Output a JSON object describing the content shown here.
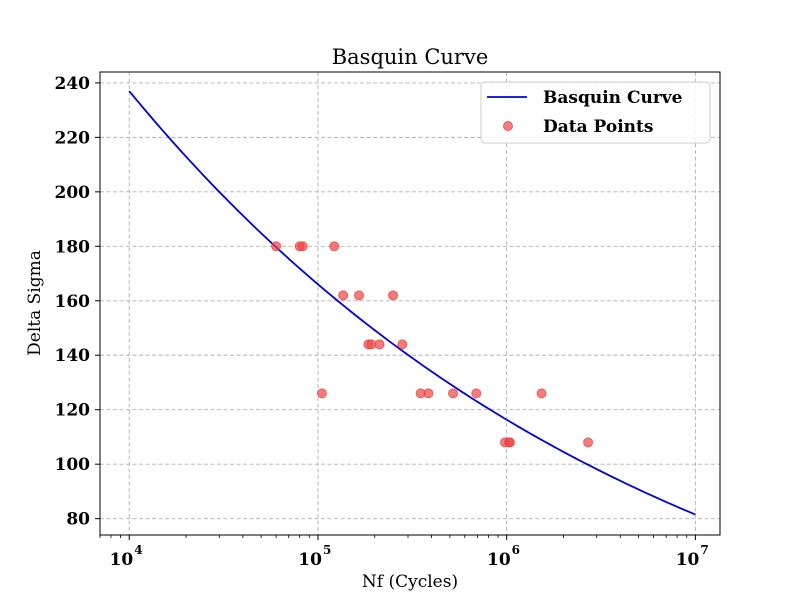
{
  "chart_data": {
    "type": "scatter+line",
    "title": "Basquin Curve",
    "xlabel": "Nf (Cycles)",
    "ylabel": "Delta Sigma",
    "xscale": "log",
    "xlim": [
      7000,
      13500000
    ],
    "ylim": [
      74,
      244
    ],
    "grid": true,
    "legend_position": "top-right",
    "x_ticks": [
      {
        "base": "10",
        "exp": "4",
        "value": 10000
      },
      {
        "base": "10",
        "exp": "5",
        "value": 100000
      },
      {
        "base": "10",
        "exp": "6",
        "value": 1000000
      },
      {
        "base": "10",
        "exp": "7",
        "value": 10000000
      }
    ],
    "y_ticks": [
      80,
      100,
      120,
      140,
      160,
      180,
      200,
      220,
      240
    ],
    "series": [
      {
        "name": "Basquin Curve",
        "kind": "line",
        "color": "#0000dd",
        "x": [
          10000,
          100000,
          1000000,
          10000000
        ],
        "y": [
          237,
          165,
          116,
          81.5
        ]
      },
      {
        "name": "Data Points",
        "kind": "scatter",
        "color": "#ee4444",
        "x": [
          60000,
          80000,
          83000,
          122000,
          136000,
          165000,
          185000,
          192000,
          212000,
          250000,
          280000,
          105000,
          350000,
          385000,
          520000,
          690000,
          1530000,
          980000,
          1030000,
          1040000,
          2700000
        ],
        "y": [
          180,
          180,
          180,
          180,
          162,
          162,
          144,
          144,
          144,
          162,
          144,
          126,
          126,
          126,
          126,
          126,
          126,
          108,
          108,
          108,
          108
        ]
      }
    ]
  }
}
